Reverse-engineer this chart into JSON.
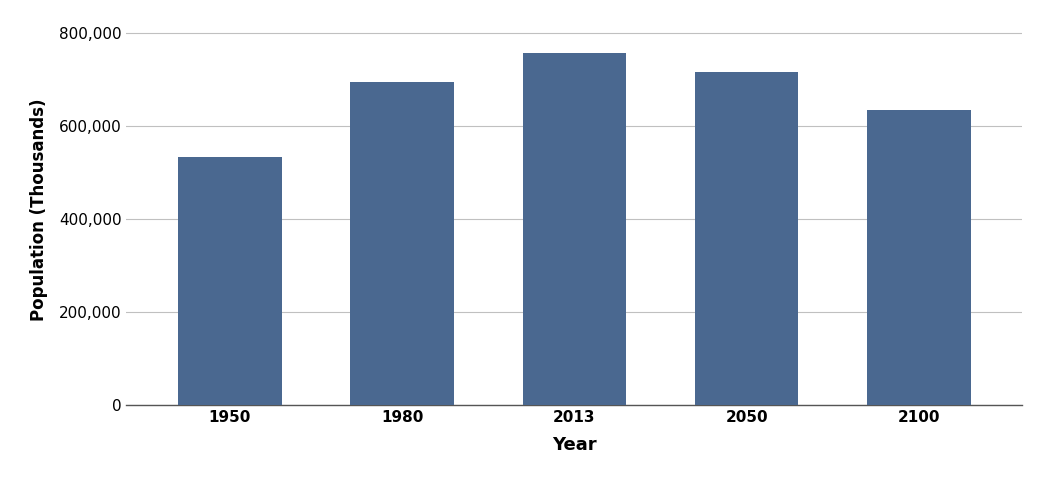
{
  "categories": [
    "1950",
    "1980",
    "2013",
    "2050",
    "2100"
  ],
  "values": [
    535000,
    695000,
    757000,
    716000,
    636000
  ],
  "bar_color": "#4a6890",
  "xlabel": "Year",
  "ylabel": "Population (Thousands)",
  "ylim": [
    0,
    840000
  ],
  "yticks": [
    0,
    200000,
    400000,
    600000,
    800000
  ],
  "xlabel_fontsize": 13,
  "ylabel_fontsize": 12,
  "tick_fontsize": 11,
  "bar_width": 0.6,
  "background_color": "#ffffff",
  "grid_color": "#c0c0c0"
}
